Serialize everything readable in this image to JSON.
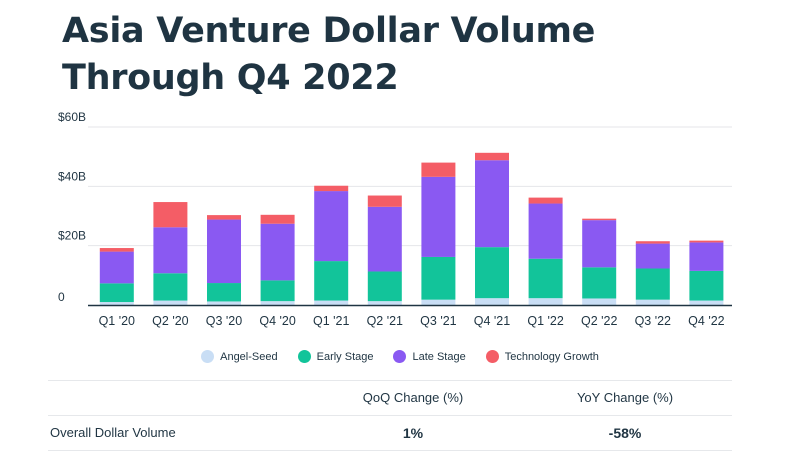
{
  "title": "Asia Venture Dollar Volume Through Q4 2022",
  "colors": {
    "Angel-Seed": "#c9def5",
    "Early Stage": "#12c49a",
    "Late Stage": "#8a59f2",
    "Technology Growth": "#f45d66"
  },
  "chart_data": {
    "type": "bar",
    "stacked": true,
    "categories": [
      "Q1 '20",
      "Q2 '20",
      "Q3 '20",
      "Q4 '20",
      "Q1 '21",
      "Q2 '21",
      "Q3 '21",
      "Q4 '21",
      "Q1 '22",
      "Q2 '22",
      "Q3 '22",
      "Q4 '22"
    ],
    "series": [
      {
        "name": "Angel-Seed",
        "values": [
          1.0,
          1.5,
          1.2,
          1.3,
          1.5,
          1.3,
          1.8,
          2.3,
          2.3,
          2.2,
          1.8,
          1.5
        ]
      },
      {
        "name": "Early Stage",
        "values": [
          6.3,
          9.2,
          6.2,
          7.0,
          13.3,
          10.0,
          14.4,
          17.2,
          13.3,
          10.5,
          10.5,
          10.0
        ]
      },
      {
        "name": "Late Stage",
        "values": [
          10.7,
          15.5,
          21.4,
          19.1,
          23.6,
          21.8,
          27.0,
          29.3,
          18.6,
          15.9,
          8.4,
          9.6
        ]
      },
      {
        "name": "Technology Growth",
        "values": [
          1.2,
          8.5,
          1.5,
          3.0,
          1.8,
          3.8,
          4.8,
          2.5,
          2.0,
          0.5,
          0.8,
          0.6
        ]
      }
    ],
    "ylim": [
      0,
      60
    ],
    "y_ticks": [
      {
        "value": 60,
        "label": "$60B"
      },
      {
        "value": 40,
        "label": "$40B"
      },
      {
        "value": 20,
        "label": "$20B"
      },
      {
        "value": 0,
        "label": "0"
      }
    ],
    "grid": true,
    "legend_position": "bottom",
    "xlabel": "",
    "ylabel": ""
  },
  "table": {
    "headers": [
      "",
      "QoQ Change (%)",
      "YoY Change (%)"
    ],
    "rows": [
      {
        "label": "Overall Dollar Volume",
        "qoq": "1%",
        "yoy": "-58%"
      }
    ]
  }
}
